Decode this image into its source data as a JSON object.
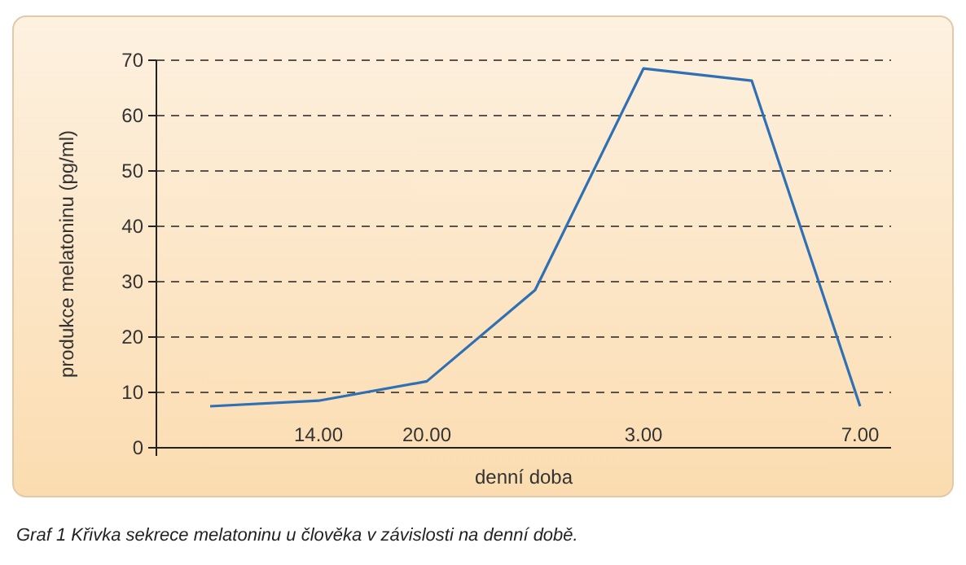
{
  "chart_data": {
    "type": "line",
    "xlabel": "denní doba",
    "ylabel": "produkce melatoninu (pg/ml)",
    "annotations": [
      "Graf 1  Křivka sekrece melatoninu u člověka v závislosti na denní době."
    ],
    "categories": [
      null,
      "14.00",
      "20.00",
      null,
      "3.00",
      null,
      "7.00"
    ],
    "series": [
      {
        "color": "#2f6fb3",
        "values": [
          7.5,
          8.5,
          12,
          28.5,
          68.5,
          66.3,
          7.5
        ]
      }
    ],
    "ylim": [
      0,
      70
    ],
    "yticks": [
      0,
      10,
      20,
      30,
      40,
      50,
      60,
      70
    ],
    "grid": "y",
    "line_style": "solid",
    "marker": "none"
  }
}
